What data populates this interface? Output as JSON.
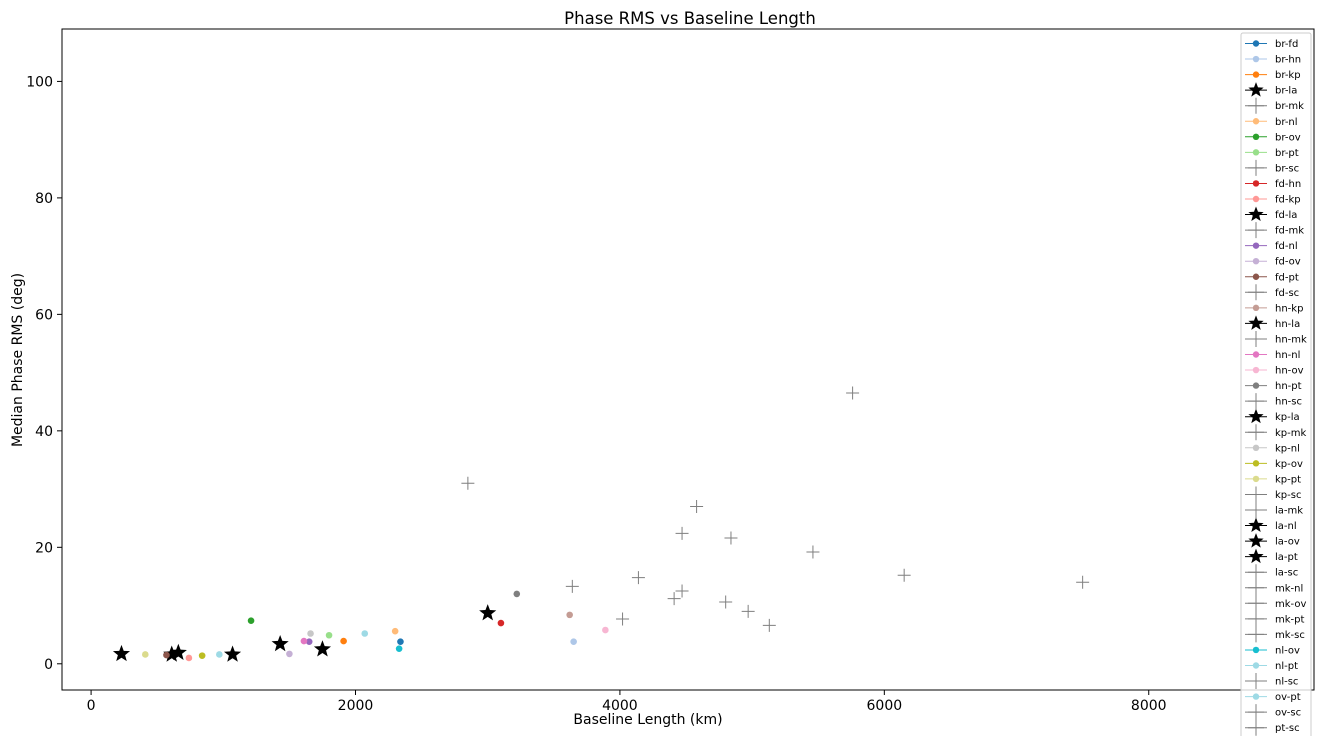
{
  "chart_data": {
    "type": "scatter",
    "title": "Phase RMS vs Baseline Length",
    "xlabel": "Baseline Length (km)",
    "ylabel": "Median Phase RMS (deg)",
    "xlim": [
      -220,
      9250
    ],
    "ylim": [
      -4.5,
      109
    ],
    "xticks": [
      0,
      2000,
      4000,
      6000,
      8000
    ],
    "yticks": [
      0,
      20,
      40,
      60,
      80,
      100
    ],
    "grid": false,
    "legend_position": "right",
    "series": [
      {
        "name": "br-fd",
        "marker": "circle",
        "color": "#1f77b4",
        "x": [
          2340
        ],
        "y": [
          3.8
        ]
      },
      {
        "name": "br-hn",
        "marker": "circle",
        "color": "#aec7e8",
        "x": [
          3650
        ],
        "y": [
          3.8
        ]
      },
      {
        "name": "br-kp",
        "marker": "circle",
        "color": "#ff7f0e",
        "x": [
          1910
        ],
        "y": [
          3.9
        ]
      },
      {
        "name": "br-la",
        "marker": "star",
        "color": "#000000",
        "x": [
          1750
        ],
        "y": [
          2.5
        ]
      },
      {
        "name": "br-mk",
        "marker": "plus",
        "color": "#7f7f7f",
        "x": [
          5760
        ],
        "y": [
          46.5
        ]
      },
      {
        "name": "br-nl",
        "marker": "circle",
        "color": "#ffbb78",
        "x": [
          2300
        ],
        "y": [
          5.6
        ]
      },
      {
        "name": "br-ov",
        "marker": "circle",
        "color": "#2ca02c",
        "x": [
          1210
        ],
        "y": [
          7.4
        ]
      },
      {
        "name": "br-pt",
        "marker": "circle",
        "color": "#98df8a",
        "x": [
          1800
        ],
        "y": [
          4.9
        ]
      },
      {
        "name": "br-sc",
        "marker": "plus",
        "color": "#7f7f7f",
        "x": [
          4840
        ],
        "y": [
          21.6
        ]
      },
      {
        "name": "fd-hn",
        "marker": "circle",
        "color": "#d62728",
        "x": [
          3100
        ],
        "y": [
          7.0
        ]
      },
      {
        "name": "fd-kp",
        "marker": "circle",
        "color": "#ff9896",
        "x": [
          740
        ],
        "y": [
          1.0
        ]
      },
      {
        "name": "fd-la",
        "marker": "star",
        "color": "#000000",
        "x": [
          610
        ],
        "y": [
          1.6
        ]
      },
      {
        "name": "fd-mk",
        "marker": "plus",
        "color": "#7f7f7f",
        "x": [
          4470
        ],
        "y": [
          12.5
        ]
      },
      {
        "name": "fd-nl",
        "marker": "circle",
        "color": "#9467bd",
        "x": [
          1650
        ],
        "y": [
          3.8
        ]
      },
      {
        "name": "fd-ov",
        "marker": "circle",
        "color": "#c5b0d5",
        "x": [
          1500
        ],
        "y": [
          1.7
        ]
      },
      {
        "name": "fd-pt",
        "marker": "circle",
        "color": "#8c564b",
        "x": [
          570
        ],
        "y": [
          1.5
        ]
      },
      {
        "name": "fd-sc",
        "marker": "plus",
        "color": "#7f7f7f",
        "x": [
          4140
        ],
        "y": [
          14.8
        ]
      },
      {
        "name": "hn-kp",
        "marker": "circle",
        "color": "#c49c94",
        "x": [
          3620
        ],
        "y": [
          8.4
        ]
      },
      {
        "name": "hn-la",
        "marker": "star",
        "color": "#000000",
        "x": [
          3000
        ],
        "y": [
          8.7
        ]
      },
      {
        "name": "hn-mk",
        "marker": "plus",
        "color": "#7f7f7f",
        "x": [
          7500
        ],
        "y": [
          14.0
        ]
      },
      {
        "name": "hn-nl",
        "marker": "circle",
        "color": "#e377c2",
        "x": [
          1610
        ],
        "y": [
          3.9
        ]
      },
      {
        "name": "hn-ov",
        "marker": "circle",
        "color": "#f7b6d2",
        "x": [
          3890
        ],
        "y": [
          5.8
        ]
      },
      {
        "name": "hn-pt",
        "marker": "circle",
        "color": "#7f7f7f",
        "x": [
          3220
        ],
        "y": [
          12.0
        ]
      },
      {
        "name": "hn-sc",
        "marker": "plus",
        "color": "#7f7f7f",
        "x": [
          6150
        ],
        "y": [
          15.2
        ]
      },
      {
        "name": "kp-la",
        "marker": "star",
        "color": "#000000",
        "x": [
          1070
        ],
        "y": [
          1.6
        ]
      },
      {
        "name": "kp-mk",
        "marker": "plus",
        "color": "#7f7f7f",
        "x": [
          4970
        ],
        "y": [
          9.0
        ]
      },
      {
        "name": "kp-nl",
        "marker": "circle",
        "color": "#c7c7c7",
        "x": [
          1660
        ],
        "y": [
          5.2
        ]
      },
      {
        "name": "kp-ov",
        "marker": "circle",
        "color": "#bcbd22",
        "x": [
          840
        ],
        "y": [
          1.4
        ]
      },
      {
        "name": "kp-pt",
        "marker": "circle",
        "color": "#dbdb8d",
        "x": [
          410
        ],
        "y": [
          1.6
        ]
      },
      {
        "name": "kp-sc",
        "marker": "plus",
        "color": "#7f7f7f",
        "x": [
          4410
        ],
        "y": [
          11.2
        ]
      },
      {
        "name": "la-mk",
        "marker": "plus",
        "color": "#7f7f7f",
        "x": [
          5460
        ],
        "y": [
          19.2
        ]
      },
      {
        "name": "la-nl",
        "marker": "star",
        "color": "#000000",
        "x": [
          1430
        ],
        "y": [
          3.4
        ]
      },
      {
        "name": "la-ov",
        "marker": "star",
        "color": "#000000",
        "x": [
          660
        ],
        "y": [
          1.9
        ]
      },
      {
        "name": "la-pt",
        "marker": "star",
        "color": "#000000",
        "x": [
          230
        ],
        "y": [
          1.7
        ]
      },
      {
        "name": "la-sc",
        "marker": "plus",
        "color": "#7f7f7f",
        "x": [
          4580
        ],
        "y": [
          27.0
        ]
      },
      {
        "name": "mk-nl",
        "marker": "plus",
        "color": "#7f7f7f",
        "x": [
          4800
        ],
        "y": [
          10.6
        ]
      },
      {
        "name": "mk-ov",
        "marker": "plus",
        "color": "#7f7f7f",
        "x": [
          2850
        ],
        "y": [
          31.0
        ]
      },
      {
        "name": "mk-pt",
        "marker": "plus",
        "color": "#7f7f7f",
        "x": [
          4470
        ],
        "y": [
          22.4
        ]
      },
      {
        "name": "mk-sc",
        "marker": "plus",
        "color": "#7f7f7f",
        "x": [
          5130
        ],
        "y": [
          6.6
        ]
      },
      {
        "name": "nl-ov",
        "marker": "circle",
        "color": "#17becf",
        "x": [
          2330
        ],
        "y": [
          2.6
        ]
      },
      {
        "name": "nl-pt",
        "marker": "circle",
        "color": "#9edae5",
        "x": [
          970
        ],
        "y": [
          1.6
        ]
      },
      {
        "name": "nl-sc",
        "marker": "plus",
        "color": "#7f7f7f",
        "x": [
          3640
        ],
        "y": [
          13.3
        ]
      },
      {
        "name": "ov-pt",
        "marker": "circle",
        "color": "#9edae5",
        "x": [
          2070
        ],
        "y": [
          5.2
        ]
      },
      {
        "name": "ov-sc",
        "marker": "plus",
        "color": "#7f7f7f",
        "x": [
          4020
        ],
        "y": [
          7.7
        ]
      },
      {
        "name": "pt-sc",
        "marker": "plus",
        "color": "#7f7f7f",
        "x": [],
        "y": []
      }
    ]
  }
}
